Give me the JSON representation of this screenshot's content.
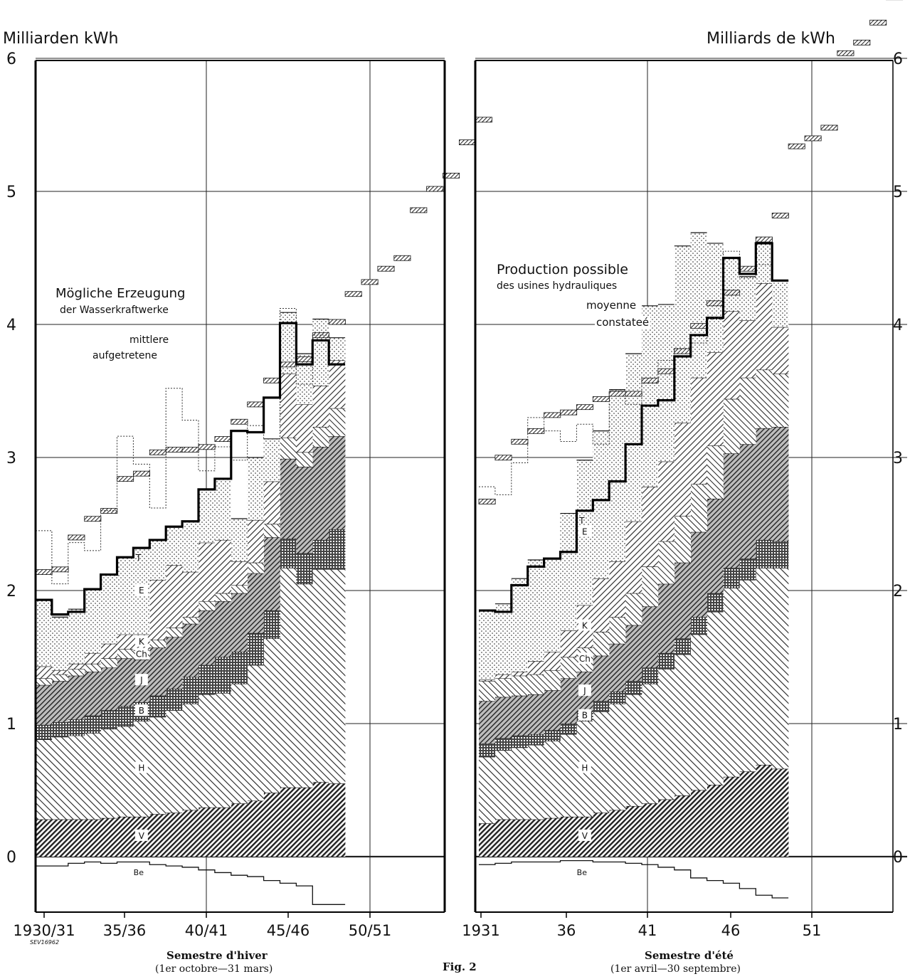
{
  "figure": {
    "caption": "Fig. 2",
    "code": "SEV16962",
    "left_unit": "Milliarden kWh",
    "right_unit": "Milliards de kWh"
  },
  "colors": {
    "ink": "#111111",
    "background": "#ffffff"
  },
  "chart_data": [
    {
      "type": "area",
      "subtype": "stepped-stacked-area",
      "title": "Semestre d'hiver",
      "subtitle": "(1er octobre—31 mars)",
      "ylabel": "Milliarden kWh",
      "xlabel": "",
      "ylim": [
        -0.4,
        6
      ],
      "y_ticks": [
        "0",
        "1",
        "2",
        "3",
        "4",
        "5",
        "6"
      ],
      "x_ticks": [
        "1930/31",
        "35/36",
        "40/41",
        "45/46",
        "50/51"
      ],
      "grid": true,
      "categories": [
        "1930/31",
        "31/32",
        "32/33",
        "33/34",
        "34/35",
        "35/36",
        "36/37",
        "37/38",
        "38/39",
        "39/40",
        "40/41",
        "41/42",
        "42/43",
        "43/44",
        "44/45",
        "45/46",
        "46/47",
        "47/48",
        "48/49"
      ],
      "series": [
        {
          "name": "V",
          "values": [
            0.28,
            0.28,
            0.28,
            0.28,
            0.29,
            0.3,
            0.3,
            0.32,
            0.33,
            0.35,
            0.37,
            0.37,
            0.4,
            0.42,
            0.48,
            0.52,
            0.52,
            0.56,
            0.55
          ]
        },
        {
          "name": "H",
          "values": [
            0.6,
            0.62,
            0.63,
            0.65,
            0.67,
            0.68,
            0.72,
            0.73,
            0.77,
            0.8,
            0.85,
            0.86,
            0.9,
            1.02,
            1.16,
            1.65,
            1.53,
            1.6,
            1.61
          ]
        },
        {
          "name": "B",
          "values": [
            0.11,
            0.11,
            0.12,
            0.13,
            0.14,
            0.15,
            0.14,
            0.16,
            0.16,
            0.2,
            0.22,
            0.27,
            0.24,
            0.24,
            0.21,
            0.22,
            0.23,
            0.22,
            0.3
          ]
        },
        {
          "name": "J",
          "values": [
            0.3,
            0.31,
            0.33,
            0.33,
            0.32,
            0.36,
            0.32,
            0.36,
            0.39,
            0.4,
            0.41,
            0.42,
            0.44,
            0.45,
            0.55,
            0.6,
            0.65,
            0.7,
            0.7
          ]
        },
        {
          "name": "Ch",
          "values": [
            0.05,
            0.05,
            0.05,
            0.06,
            0.07,
            0.07,
            0.07,
            0.06,
            0.07,
            0.05,
            0.07,
            0.06,
            0.06,
            0.08,
            0.1,
            0.16,
            0.11,
            0.15,
            0.21
          ]
        },
        {
          "name": "K",
          "values": [
            0.09,
            0.03,
            0.04,
            0.08,
            0.11,
            0.11,
            0.12,
            0.45,
            0.47,
            0.34,
            0.44,
            0.4,
            0.18,
            0.32,
            0.32,
            0.48,
            0.36,
            0.31,
            0.36
          ]
        },
        {
          "name": "E",
          "values": [
            0.5,
            0.4,
            0.41,
            0.48,
            0.52,
            0.58,
            0.65,
            0.3,
            0.29,
            0.38,
            0.4,
            0.46,
            0.32,
            0.47,
            0.32,
            0.46,
            0.38,
            0.5,
            0.17
          ]
        }
      ],
      "total_T": [
        1.93,
        1.82,
        1.84,
        2.01,
        2.12,
        2.25,
        2.32,
        2.38,
        2.48,
        2.52,
        2.76,
        2.84,
        3.2,
        3.19,
        3.45,
        4.01,
        3.7,
        3.88,
        3.7
      ],
      "below_zero_Be": [
        -0.07,
        -0.07,
        -0.05,
        -0.04,
        -0.05,
        -0.04,
        -0.04,
        -0.06,
        -0.07,
        -0.08,
        -0.1,
        -0.12,
        -0.14,
        -0.15,
        -0.18,
        -0.2,
        -0.22,
        -0.36,
        -0.36
      ],
      "possible_mean": [
        2.12,
        2.14,
        2.38,
        2.52,
        2.58,
        2.82,
        2.86,
        3.02,
        3.04,
        3.04,
        3.06,
        3.12,
        3.25,
        3.38,
        3.56,
        3.68,
        3.72,
        3.9,
        4.0,
        4.21,
        4.3,
        4.4,
        4.48,
        4.84,
        5.0,
        5.1,
        5.35,
        5.52
      ],
      "possible_observed": [
        2.45,
        2.05,
        2.36,
        2.3,
        2.6,
        3.16,
        2.95,
        2.62,
        3.52,
        3.28,
        2.9,
        3.08,
        2.98,
        3.24,
        3.14,
        4.12,
        3.55,
        3.92
      ],
      "annotations": [
        "Mögliche Erzeugung",
        "der Wasserkraftwerke",
        "mittlere",
        "aufgetretene"
      ]
    },
    {
      "type": "area",
      "subtype": "stepped-stacked-area",
      "title": "Semestre d'été",
      "subtitle": "(1er avril—30 septembre)",
      "ylabel": "Milliards de kWh",
      "xlabel": "",
      "ylim": [
        -0.4,
        6
      ],
      "y_ticks": [
        "0",
        "1",
        "2",
        "3",
        "4",
        "5",
        "6"
      ],
      "x_ticks": [
        "1931",
        "36",
        "41",
        "46",
        "51"
      ],
      "grid": true,
      "categories": [
        "1931",
        "1932",
        "1933",
        "1934",
        "1935",
        "1936",
        "1937",
        "1938",
        "1939",
        "1940",
        "1941",
        "1942",
        "1943",
        "1944",
        "1945",
        "1946",
        "1947",
        "1948",
        "1949"
      ],
      "series": [
        {
          "name": "V",
          "values": [
            0.25,
            0.28,
            0.28,
            0.28,
            0.29,
            0.3,
            0.3,
            0.33,
            0.35,
            0.38,
            0.4,
            0.43,
            0.46,
            0.5,
            0.54,
            0.6,
            0.64,
            0.69,
            0.66
          ]
        },
        {
          "name": "H",
          "values": [
            0.5,
            0.52,
            0.54,
            0.56,
            0.58,
            0.62,
            0.72,
            0.76,
            0.8,
            0.84,
            0.9,
            0.98,
            1.06,
            1.17,
            1.3,
            1.42,
            1.44,
            1.48,
            1.51
          ]
        },
        {
          "name": "B",
          "values": [
            0.1,
            0.09,
            0.09,
            0.08,
            0.08,
            0.08,
            0.07,
            0.08,
            0.09,
            0.1,
            0.12,
            0.12,
            0.12,
            0.13,
            0.14,
            0.15,
            0.16,
            0.21,
            0.2
          ]
        },
        {
          "name": "J",
          "values": [
            0.32,
            0.31,
            0.3,
            0.3,
            0.3,
            0.34,
            0.3,
            0.34,
            0.36,
            0.42,
            0.46,
            0.52,
            0.57,
            0.64,
            0.71,
            0.86,
            0.86,
            0.84,
            0.86
          ]
        },
        {
          "name": "Ch",
          "values": [
            0.15,
            0.14,
            0.15,
            0.15,
            0.15,
            0.16,
            0.18,
            0.18,
            0.2,
            0.24,
            0.3,
            0.32,
            0.35,
            0.36,
            0.4,
            0.41,
            0.5,
            0.44,
            0.4
          ]
        },
        {
          "name": "K",
          "values": [
            0.01,
            0.03,
            0.03,
            0.1,
            0.14,
            0.2,
            0.32,
            0.4,
            0.42,
            0.54,
            0.6,
            0.6,
            0.7,
            0.8,
            0.7,
            0.66,
            0.43,
            0.65,
            0.35
          ]
        },
        {
          "name": "E",
          "values": [
            0.52,
            0.53,
            0.7,
            0.76,
            0.7,
            0.88,
            1.09,
            1.11,
            1.29,
            1.26,
            1.36,
            1.18,
            1.33,
            1.09,
            0.82,
            0.4,
            0.33,
            0.3,
            0.35
          ]
        }
      ],
      "total_T": [
        1.85,
        1.84,
        2.04,
        2.18,
        2.24,
        2.29,
        2.6,
        2.68,
        2.82,
        3.1,
        3.39,
        3.43,
        3.76,
        3.92,
        4.05,
        4.5,
        4.38,
        4.61,
        4.33
      ],
      "below_zero_Be": [
        -0.06,
        -0.05,
        -0.04,
        -0.04,
        -0.04,
        -0.03,
        -0.03,
        -0.04,
        -0.04,
        -0.05,
        -0.06,
        -0.08,
        -0.1,
        -0.16,
        -0.18,
        -0.2,
        -0.24,
        -0.29,
        -0.31
      ],
      "possible_mean": [
        2.65,
        2.98,
        3.1,
        3.18,
        3.3,
        3.32,
        3.36,
        3.42,
        3.46,
        3.46,
        3.56,
        3.63,
        3.78,
        3.97,
        4.14,
        4.22,
        4.4,
        4.62,
        4.8,
        5.32,
        5.38,
        5.46,
        6.02,
        6.1,
        6.25,
        6.44
      ],
      "possible_observed": [
        2.78,
        2.72,
        2.96,
        3.3,
        3.2,
        3.12,
        3.25,
        3.1,
        3.5,
        3.4,
        3.56,
        3.73,
        3.82,
        3.86,
        4.04,
        4.55,
        4.35,
        4.45
      ],
      "annotations": [
        "Production possible",
        "des usines hydrauliques",
        "moyenne",
        "constateé"
      ]
    }
  ],
  "left_panel": {
    "stack_labels": [
      "V",
      "H",
      "B",
      "J",
      "Ch",
      "K",
      "E",
      "T"
    ],
    "zero_label": "Be"
  },
  "right_panel": {
    "stack_labels": [
      "V",
      "H",
      "B",
      "J",
      "Ch",
      "K",
      "E",
      "T"
    ],
    "zero_label": "Be"
  }
}
